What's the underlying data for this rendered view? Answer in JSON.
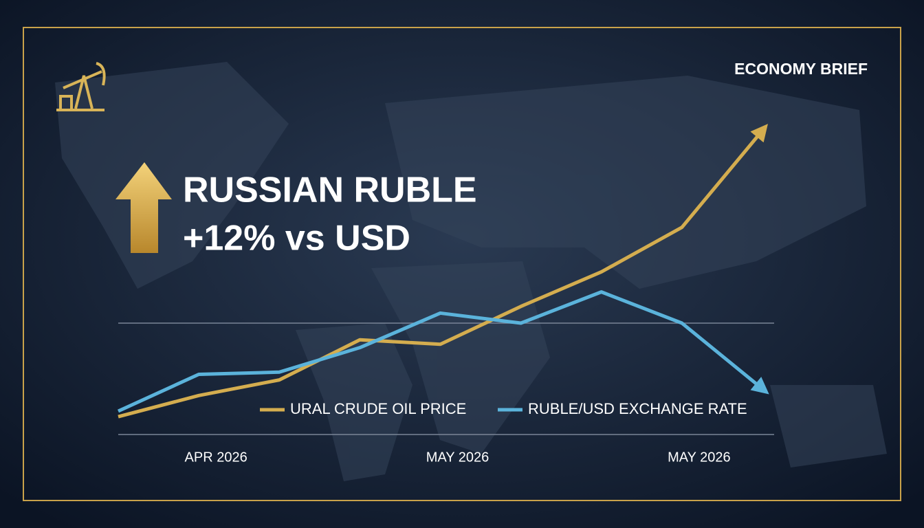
{
  "header": {
    "brand": "ECONOMY BRIEF",
    "headline": "RUSSIAN RUBLE",
    "subheadline": "+12% vs USD"
  },
  "chart_data": {
    "type": "line",
    "categories": [
      null,
      "APR 2026",
      null,
      null,
      "MAY 2026",
      null,
      null,
      "MAY 2026",
      null
    ],
    "series": [
      {
        "name": "URAL CRUDE OIL PRICE",
        "color": "#d4ad4f",
        "values": [
          16,
          35,
          49,
          85,
          81,
          115,
          146,
          186,
          273
        ]
      },
      {
        "name": "RUBLE/USD EXCHANGE RATE",
        "color": "#5bb3db",
        "values": [
          21,
          54,
          56,
          78,
          109,
          100,
          128,
          100,
          41
        ]
      }
    ]
  }
}
